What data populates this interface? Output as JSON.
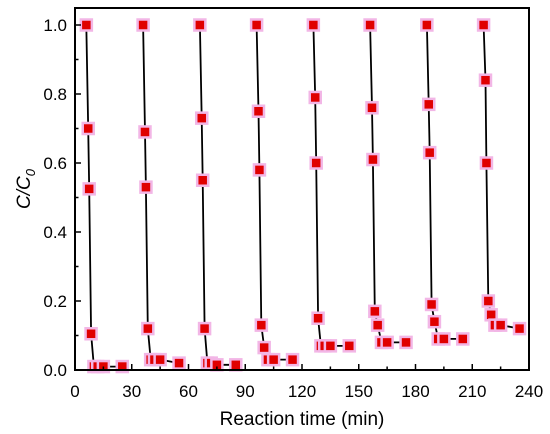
{
  "chart_data": {
    "type": "scatter",
    "title": "",
    "xlabel": "Reaction time (min)",
    "ylabel": "C/C0",
    "ylabel_main": "C/C",
    "ylabel_sub": "0",
    "xlim": [
      0,
      240
    ],
    "ylim": [
      0,
      1.05
    ],
    "xticks": [
      0,
      30,
      60,
      90,
      120,
      150,
      180,
      210,
      240
    ],
    "yticks": [
      0.0,
      0.2,
      0.4,
      0.6,
      0.8,
      1.0
    ],
    "xtick_labels": [
      "0",
      "30",
      "60",
      "90",
      "120",
      "150",
      "180",
      "210",
      "240"
    ],
    "ytick_labels": [
      "0.0",
      "0.2",
      "0.4",
      "0.6",
      "0.8",
      "1.0"
    ],
    "grid": false,
    "marker_color": "#e00000",
    "marker_halo_color": "#f2b6e6",
    "line_color": "#000000",
    "series": [
      {
        "x": [
          6,
          7,
          7.5,
          8.5,
          10,
          12,
          15,
          25
        ],
        "y": [
          1.0,
          0.7,
          0.525,
          0.105,
          0.01,
          0.01,
          0.01,
          0.01
        ]
      },
      {
        "x": [
          36,
          37,
          37.5,
          38.5,
          40,
          42,
          45,
          55
        ],
        "y": [
          1.0,
          0.69,
          0.53,
          0.12,
          0.03,
          0.03,
          0.03,
          0.02
        ]
      },
      {
        "x": [
          66,
          67,
          67.5,
          68.5,
          70,
          72,
          75,
          85
        ],
        "y": [
          1.0,
          0.73,
          0.55,
          0.12,
          0.02,
          0.02,
          0.015,
          0.015
        ]
      },
      {
        "x": [
          96,
          97,
          97.5,
          98.5,
          100,
          102,
          105,
          115
        ],
        "y": [
          1.0,
          0.75,
          0.58,
          0.13,
          0.065,
          0.03,
          0.03,
          0.03
        ]
      },
      {
        "x": [
          126,
          127,
          127.5,
          128.5,
          130,
          132,
          135,
          145
        ],
        "y": [
          1.0,
          0.79,
          0.6,
          0.15,
          0.07,
          0.07,
          0.07,
          0.07
        ]
      },
      {
        "x": [
          156,
          157,
          157.5,
          158.5,
          160,
          162,
          165,
          175
        ],
        "y": [
          1.0,
          0.76,
          0.61,
          0.17,
          0.13,
          0.08,
          0.08,
          0.08
        ]
      },
      {
        "x": [
          186,
          187,
          187.5,
          188.5,
          190,
          192,
          195,
          205
        ],
        "y": [
          1.0,
          0.77,
          0.63,
          0.19,
          0.14,
          0.09,
          0.09,
          0.09
        ]
      },
      {
        "x": [
          216,
          217,
          217.5,
          218.5,
          220,
          222,
          225,
          235
        ],
        "y": [
          1.0,
          0.84,
          0.6,
          0.2,
          0.16,
          0.13,
          0.13,
          0.12
        ]
      }
    ]
  }
}
